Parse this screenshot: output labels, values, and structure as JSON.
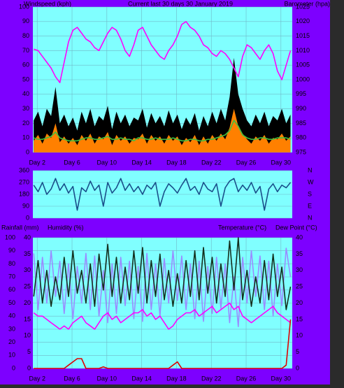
{
  "chart_data": [
    {
      "type": "line",
      "title": "Current last 30 days 30 January 2019",
      "ylabel": "Windspeed (kph)",
      "y2label": "Barometer (hpa)",
      "x": [
        1.6,
        2.1,
        2.6,
        3.1,
        3.6,
        4.1,
        4.6,
        5.1,
        5.6,
        6.1,
        6.6,
        7.1,
        7.6,
        8.1,
        8.6,
        9.1,
        9.6,
        10.1,
        10.6,
        11.1,
        11.6,
        12.1,
        12.6,
        13.1,
        13.6,
        14.1,
        14.6,
        15.1,
        15.6,
        16.1,
        16.6,
        17.1,
        17.6,
        18.1,
        18.6,
        19.1,
        19.6,
        20.1,
        20.6,
        21.1,
        21.6,
        22.1,
        22.6,
        23.1,
        23.6,
        24.1,
        24.6,
        25.1,
        25.6,
        26.1,
        26.6,
        27.1,
        27.6,
        28.1,
        28.6,
        29.1,
        29.6,
        30.1,
        30.6,
        31.1
      ],
      "xlim": [
        1.5,
        31.3
      ],
      "xticks": [
        {
          "value": 2,
          "label": "Day 2"
        },
        {
          "value": 6,
          "label": "Day 6"
        },
        {
          "value": 10,
          "label": "Day 10"
        },
        {
          "value": 14,
          "label": "Day 14"
        },
        {
          "value": 18,
          "label": "Day 18"
        },
        {
          "value": 22,
          "label": "Day 22"
        },
        {
          "value": 26,
          "label": "Day 26"
        },
        {
          "value": 30,
          "label": "Day 30"
        }
      ],
      "ylim": [
        0,
        100
      ],
      "yticks": [
        0,
        10,
        20,
        30,
        40,
        50,
        60,
        70,
        80,
        90,
        100
      ],
      "y2lim": [
        975,
        1025
      ],
      "y2ticks": [
        975,
        980,
        985,
        990,
        995,
        1000,
        1005,
        1010,
        1015,
        1020,
        1025
      ],
      "grid": true,
      "series": [
        {
          "color": "#000000",
          "style": "area",
          "values": [
            22,
            28,
            18,
            30,
            25,
            45,
            20,
            26,
            18,
            24,
            15,
            28,
            20,
            30,
            18,
            25,
            22,
            32,
            16,
            28,
            20,
            26,
            18,
            24,
            22,
            30,
            17,
            27,
            20,
            25,
            18,
            29,
            20,
            26,
            16,
            24,
            19,
            27,
            15,
            25,
            18,
            28,
            20,
            30,
            22,
            38,
            65,
            40,
            30,
            22,
            18,
            26,
            20,
            28,
            18,
            25,
            22,
            30,
            20,
            26
          ]
        },
        {
          "color": "#ff8000",
          "style": "area",
          "values": [
            8,
            12,
            6,
            13,
            10,
            20,
            7,
            11,
            6,
            10,
            5,
            12,
            8,
            13,
            6,
            11,
            9,
            14,
            5,
            12,
            8,
            11,
            6,
            10,
            9,
            13,
            6,
            12,
            8,
            11,
            6,
            12,
            8,
            11,
            5,
            10,
            7,
            12,
            5,
            11,
            6,
            12,
            8,
            13,
            9,
            17,
            30,
            18,
            13,
            9,
            6,
            11,
            8,
            12,
            6,
            10,
            9,
            13,
            8,
            11
          ]
        },
        {
          "color": "#40c040",
          "style": "line",
          "values": [
            10,
            9,
            9,
            10,
            11,
            14,
            10,
            9,
            8,
            8,
            8,
            9,
            10,
            10,
            9,
            9,
            10,
            11,
            9,
            9,
            10,
            9,
            9,
            8,
            10,
            10,
            9,
            9,
            10,
            9,
            9,
            9,
            10,
            9,
            8,
            8,
            9,
            9,
            8,
            8,
            9,
            9,
            10,
            11,
            12,
            15,
            22,
            18,
            12,
            10,
            9,
            9,
            10,
            10,
            9,
            9,
            10,
            10,
            10,
            9
          ]
        },
        {
          "color": "#ff00ff",
          "style": "line",
          "axis": "y2",
          "values": [
            1010.5,
            1010,
            1008,
            1006,
            1004,
            1001,
            999,
            1006,
            1013,
            1017,
            1018,
            1016,
            1014,
            1013,
            1011,
            1010,
            1013,
            1016,
            1018,
            1017,
            1014,
            1010,
            1008,
            1012,
            1017,
            1018,
            1015,
            1012,
            1010,
            1008,
            1007,
            1010,
            1012,
            1015,
            1019,
            1020,
            1018,
            1017,
            1015,
            1012,
            1011,
            1009,
            1008,
            1010,
            1009,
            1007,
            1004,
            1001,
            1008,
            1012,
            1011,
            1009,
            1007,
            1010,
            1012,
            1009,
            1003,
            1000,
            1005,
            1010
          ]
        }
      ]
    },
    {
      "type": "line",
      "x": [
        1.6,
        2.1,
        2.6,
        3.1,
        3.6,
        4.1,
        4.6,
        5.1,
        5.6,
        6.1,
        6.6,
        7.1,
        7.6,
        8.1,
        8.6,
        9.1,
        9.6,
        10.1,
        10.6,
        11.1,
        11.6,
        12.1,
        12.6,
        13.1,
        13.6,
        14.1,
        14.6,
        15.1,
        15.6,
        16.1,
        16.6,
        17.1,
        17.6,
        18.1,
        18.6,
        19.1,
        19.6,
        20.1,
        20.6,
        21.1,
        21.6,
        22.1,
        22.6,
        23.1,
        23.6,
        24.1,
        24.6,
        25.1,
        25.6,
        26.1,
        26.6,
        27.1,
        27.6,
        28.1,
        28.6,
        29.1,
        29.6,
        30.1,
        30.6,
        31.1
      ],
      "xlim": [
        1.5,
        31.3
      ],
      "ylim": [
        0,
        360
      ],
      "yticks": [
        0,
        90,
        180,
        270,
        360
      ],
      "y2lim": [
        0,
        360
      ],
      "y2ticks": [
        {
          "value": 360,
          "label": "N"
        },
        {
          "value": 270,
          "label": "W"
        },
        {
          "value": 180,
          "label": "S"
        },
        {
          "value": 90,
          "label": "E"
        },
        {
          "value": 0,
          "label": "N"
        }
      ],
      "grid": true,
      "series": [
        {
          "color": "#1a4f8a",
          "style": "line",
          "values": [
            250,
            200,
            270,
            180,
            220,
            300,
            210,
            260,
            190,
            240,
            60,
            230,
            200,
            280,
            210,
            250,
            90,
            270,
            190,
            230,
            300,
            210,
            260,
            200,
            240,
            180,
            250,
            220,
            270,
            90,
            200,
            260,
            230,
            190,
            250,
            300,
            210,
            240,
            180,
            270,
            220,
            200,
            260,
            90,
            230,
            280,
            300,
            200,
            250,
            210,
            270,
            190,
            240,
            60,
            220,
            260,
            200,
            250,
            230,
            270
          ]
        }
      ]
    },
    {
      "type": "line",
      "ylabel": "Humidity (%)",
      "y3label": "Rainfall (mm)",
      "y2labels": [
        "Temperature (°C)",
        "Dew Point (°C)"
      ],
      "x": [
        1.6,
        2.1,
        2.6,
        3.1,
        3.6,
        4.1,
        4.6,
        5.1,
        5.6,
        6.1,
        6.6,
        7.1,
        7.6,
        8.1,
        8.6,
        9.1,
        9.6,
        10.1,
        10.6,
        11.1,
        11.6,
        12.1,
        12.6,
        13.1,
        13.6,
        14.1,
        14.6,
        15.1,
        15.6,
        16.1,
        16.6,
        17.1,
        17.6,
        18.1,
        18.6,
        19.1,
        19.6,
        20.1,
        20.6,
        21.1,
        21.6,
        22.1,
        22.6,
        23.1,
        23.6,
        24.1,
        24.6,
        25.1,
        25.6,
        26.1,
        26.6,
        27.1,
        27.6,
        28.1,
        28.6,
        29.1,
        29.6,
        30.1,
        30.6,
        31.1
      ],
      "xlim": [
        1.5,
        31.3
      ],
      "xticks": [
        {
          "value": 2,
          "label": "Day 2"
        },
        {
          "value": 6,
          "label": "Day 6"
        },
        {
          "value": 10,
          "label": "Day 10"
        },
        {
          "value": 14,
          "label": "Day 14"
        },
        {
          "value": 18,
          "label": "Day 18"
        },
        {
          "value": 22,
          "label": "Day 22"
        },
        {
          "value": 26,
          "label": "Day 26"
        },
        {
          "value": 30,
          "label": "Day 30"
        }
      ],
      "ylim": [
        0,
        100
      ],
      "yticks": [
        0,
        10,
        20,
        30,
        40,
        50,
        60,
        70,
        80,
        90,
        100
      ],
      "y2lim": [
        0,
        40
      ],
      "y2ticks": [
        0,
        5,
        10,
        15,
        20,
        25,
        30,
        35,
        40
      ],
      "y3lim": [
        0,
        40
      ],
      "y3ticks": [
        0,
        5,
        10,
        15,
        20,
        25,
        30,
        35,
        40
      ],
      "grid": true,
      "series": [
        {
          "color": "#9a8cff",
          "style": "line",
          "values": [
            88,
            45,
            85,
            50,
            90,
            55,
            82,
            42,
            80,
            38,
            78,
            50,
            88,
            45,
            86,
            40,
            75,
            35,
            80,
            42,
            85,
            48,
            82,
            38,
            78,
            36,
            88,
            45,
            80,
            40,
            84,
            50,
            90,
            52,
            86,
            45,
            80,
            38,
            82,
            36,
            78,
            42,
            85,
            46,
            80,
            35,
            70,
            32,
            85,
            50,
            90,
            55,
            86,
            45,
            82,
            40,
            80,
            48,
            92,
            70
          ]
        },
        {
          "color": "#14301e",
          "style": "line",
          "axis": "y2",
          "values": [
            22,
            33,
            20,
            30,
            19,
            28,
            21,
            34,
            22,
            36,
            23,
            30,
            20,
            32,
            19,
            35,
            24,
            38,
            22,
            34,
            20,
            31,
            21,
            36,
            23,
            37,
            20,
            33,
            22,
            35,
            21,
            30,
            19,
            29,
            20,
            33,
            22,
            36,
            21,
            37,
            23,
            34,
            20,
            32,
            22,
            39,
            24,
            40,
            21,
            30,
            19,
            28,
            20,
            33,
            21,
            35,
            22,
            31,
            18,
            25
          ]
        },
        {
          "color": "#ff00ff",
          "style": "line",
          "axis": "y2",
          "values": [
            17,
            16,
            16,
            15,
            14,
            13,
            12,
            13,
            12,
            14,
            15,
            16,
            14,
            13,
            12,
            14,
            16,
            17,
            15,
            16,
            14,
            15,
            16,
            17,
            17,
            18,
            16,
            17,
            15,
            16,
            14,
            12,
            13,
            15,
            16,
            17,
            17,
            18,
            16,
            17,
            18,
            19,
            17,
            18,
            19,
            20,
            18,
            19,
            16,
            15,
            14,
            15,
            16,
            17,
            18,
            19,
            17,
            16,
            15,
            14
          ]
        },
        {
          "color": "#e00000",
          "style": "line",
          "axis": "y3",
          "values": [
            0,
            0,
            0,
            0,
            0,
            0,
            0,
            0,
            1,
            2,
            3,
            3,
            0,
            0,
            0,
            0,
            0.5,
            0,
            0,
            0,
            0,
            0,
            0,
            0,
            0,
            0,
            0,
            0,
            0,
            0,
            0,
            0,
            1,
            2,
            0,
            0,
            0,
            0,
            0,
            0,
            0,
            0,
            0,
            0,
            0,
            0,
            0,
            0,
            0,
            0,
            0,
            0,
            0,
            0,
            0,
            0,
            0,
            0,
            1,
            15
          ]
        }
      ]
    }
  ]
}
